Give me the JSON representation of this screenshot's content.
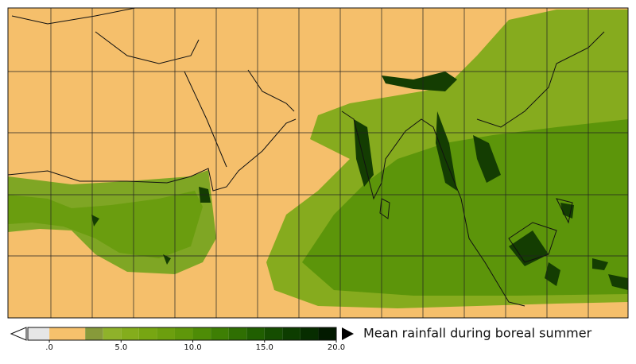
{
  "map": {
    "type": "filled-contour-map"
  },
  "colorbar": {
    "title": "Mean rainfall during boreal summer",
    "lim": [
      -1.5,
      20
    ],
    "levels": [
      -1.5,
      0,
      2.5,
      3.75,
      5,
      6.25,
      7.5,
      8.75,
      10,
      11.25,
      12.5,
      13.75,
      15,
      16.25,
      17.5,
      18.75,
      20
    ],
    "colors": [
      "#e6e6e6",
      "#f6c16c",
      "#879a3a",
      "#8fb22a",
      "#84ad1c",
      "#77a612",
      "#6c9f0e",
      "#5f970a",
      "#4e8c06",
      "#3e7f04",
      "#2f6f02",
      "#205f01",
      "#154d01",
      "#0d3d00",
      "#072d00",
      "#021a00"
    ],
    "ticks": [
      {
        "value": 0,
        "label": ".0"
      },
      {
        "value": 5,
        "label": "5.0"
      },
      {
        "value": 10,
        "label": "10.0"
      },
      {
        "value": 15,
        "label": "15.0"
      },
      {
        "value": 20,
        "label": "20.0"
      }
    ]
  }
}
